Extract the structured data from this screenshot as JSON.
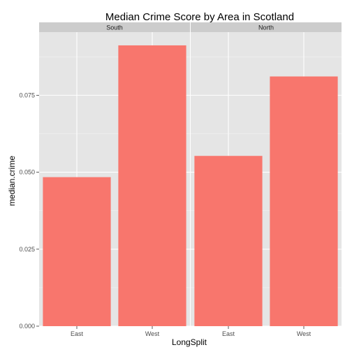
{
  "chart_data": {
    "type": "bar",
    "title": "Median Crime Score by Area in Scotland",
    "xlabel": "LongSplit",
    "ylabel": "median.crime",
    "ylim": [
      0,
      0.0955
    ],
    "yticks": [
      "0.000",
      "0.025",
      "0.050",
      "0.075"
    ],
    "ytick_values": [
      0,
      0.025,
      0.05,
      0.075
    ],
    "categories": [
      "East",
      "West"
    ],
    "bar_color": "#f8766d",
    "panel_color": "#e5e5e5",
    "strip_color": "#cccccc",
    "grid": true,
    "legend": "none",
    "facets": [
      {
        "label": "South",
        "values": [
          0.0484,
          0.0912
        ]
      },
      {
        "label": "North",
        "values": [
          0.0553,
          0.0811
        ]
      }
    ]
  }
}
